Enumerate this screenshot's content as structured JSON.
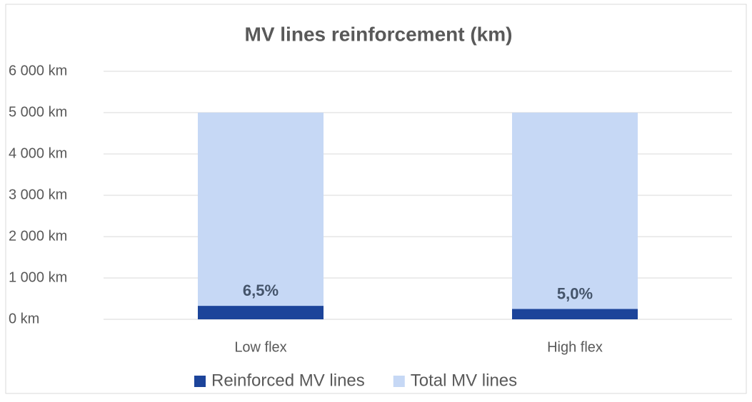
{
  "chart_data": {
    "type": "bar",
    "barmode": "overlay",
    "title": "MV lines reinforcement (km)",
    "categories": [
      "Low flex",
      "High flex"
    ],
    "series": [
      {
        "name": "Total MV lines",
        "color": "#c6d8f5",
        "values": [
          5000,
          5000
        ]
      },
      {
        "name": "Reinforced MV lines",
        "color": "#1c449a",
        "values": [
          325,
          250
        ]
      }
    ],
    "annotations": [
      "6,5%",
      "5,0%"
    ],
    "legend_order": [
      "Reinforced MV lines",
      "Total MV lines"
    ],
    "ylim": [
      0,
      6000
    ],
    "yticks": [
      {
        "value": 0,
        "label": "0 km"
      },
      {
        "value": 1000,
        "label": "1 000 km"
      },
      {
        "value": 2000,
        "label": "2 000 km"
      },
      {
        "value": 3000,
        "label": "3 000 km"
      },
      {
        "value": 4000,
        "label": "4 000 km"
      },
      {
        "value": 5000,
        "label": "5 000 km"
      },
      {
        "value": 6000,
        "label": "6 000 km"
      }
    ],
    "grid": true,
    "legend": "bottom"
  }
}
